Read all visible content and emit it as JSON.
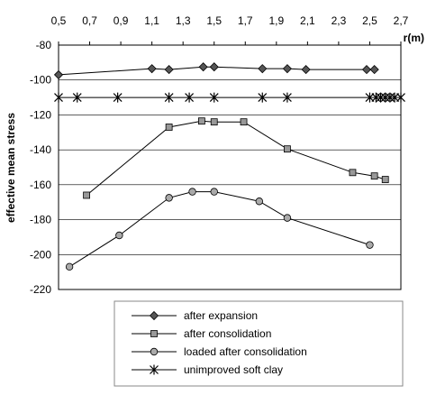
{
  "chart_data": {
    "type": "line",
    "xlabel": "r(m)",
    "ylabel": "effective mean stress",
    "xlim": [
      0.5,
      2.7
    ],
    "ylim": [
      -220,
      -80
    ],
    "xticks": [
      "0,5",
      "0,7",
      "0,9",
      "1,1",
      "1,3",
      "1,5",
      "1,7",
      "1,9",
      "2,1",
      "2,3",
      "2,5",
      "2,7"
    ],
    "yticks": [
      "-80",
      "-100",
      "-120",
      "-140",
      "-160",
      "-180",
      "-200",
      "-220"
    ],
    "x_axis_position": "top",
    "grid": "horizontal",
    "legend_position": "bottom",
    "series": [
      {
        "name": "after expansion",
        "marker": "diamond",
        "color": "#555555",
        "x": [
          0.5,
          1.1,
          1.21,
          1.43,
          1.5,
          1.81,
          1.97,
          2.09,
          2.48,
          2.53
        ],
        "y": [
          -97,
          -93.5,
          -94,
          -92.5,
          -92.5,
          -93.5,
          -93.5,
          -94,
          -94,
          -94
        ]
      },
      {
        "name": "after consolidation",
        "marker": "square",
        "color": "#999999",
        "x": [
          0.68,
          1.21,
          1.42,
          1.5,
          1.69,
          1.97,
          2.39,
          2.53,
          2.6
        ],
        "y": [
          -166,
          -127,
          -123.5,
          -124,
          -124,
          -139.5,
          -153,
          -155,
          -157
        ]
      },
      {
        "name": "loaded after consolidation",
        "marker": "circle",
        "color": "#aaaaaa",
        "x": [
          0.57,
          0.89,
          1.21,
          1.36,
          1.5,
          1.79,
          1.97,
          2.5
        ],
        "y": [
          -207,
          -189,
          -167.5,
          -164,
          -164,
          -169.5,
          -179,
          -194.5
        ]
      },
      {
        "name": "unimproved soft clay",
        "marker": "asterisk",
        "color": "#000000",
        "x": [
          0.5,
          0.62,
          0.88,
          1.21,
          1.34,
          1.5,
          1.81,
          1.97,
          2.5,
          2.54,
          2.57,
          2.6,
          2.63,
          2.66,
          2.7
        ],
        "y": [
          -110,
          -110,
          -110,
          -110,
          -110,
          -110,
          -110,
          -110,
          -110,
          -110,
          -110,
          -110,
          -110,
          -110,
          -110
        ]
      }
    ]
  }
}
